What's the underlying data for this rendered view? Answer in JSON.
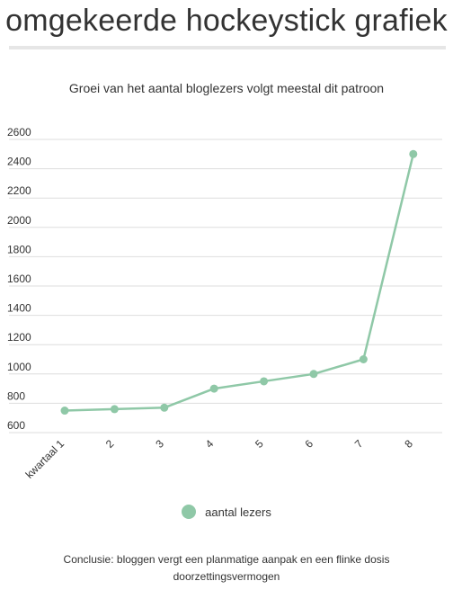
{
  "page": {
    "title": "omgekeerde hockeystick grafiek",
    "conclusion": "Conclusie: bloggen vergt een planmatige aanpak en een flinke dosis doorzettingsvermogen"
  },
  "chart_data": {
    "type": "line",
    "title": "Groei van het aantal bloglezers volgt meestal dit patroon",
    "categories": [
      "kwartaal 1",
      "2",
      "3",
      "4",
      "5",
      "6",
      "7",
      "8"
    ],
    "series": [
      {
        "name": "aantal lezers",
        "values": [
          750,
          760,
          770,
          900,
          950,
          1000,
          1100,
          2500
        ],
        "color": "#8fc8a7"
      }
    ],
    "yticks": [
      600,
      800,
      1000,
      1200,
      1400,
      1600,
      1800,
      2000,
      2200,
      2400,
      2600
    ],
    "ylim": [
      600,
      2600
    ],
    "grid": true,
    "legend_position": "bottom"
  }
}
